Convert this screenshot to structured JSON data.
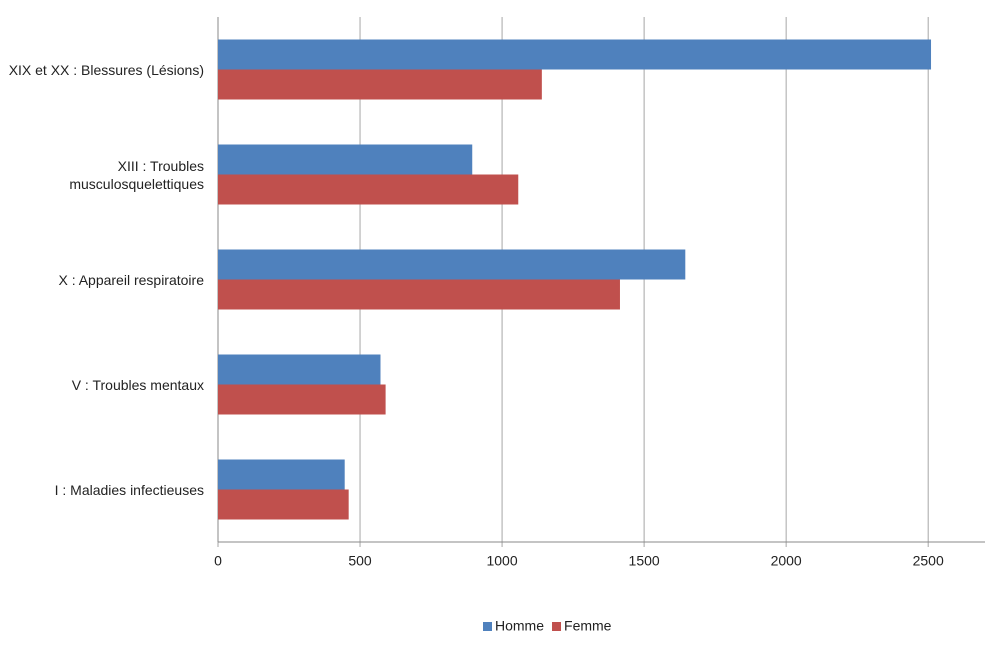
{
  "chart_data": {
    "type": "hbar",
    "categories": [
      "XIX et XX : Blessures (Lésions)",
      "XIII : Troubles musculosquelettiques",
      "X : Appareil respiratoire",
      "V : Troubles mentaux",
      "I : Maladies infectieuses"
    ],
    "series": [
      {
        "name": "Homme",
        "color": "#4f81bd",
        "values": [
          2510,
          895,
          1645,
          572,
          446
        ]
      },
      {
        "name": "Femme",
        "color": "#c0504d",
        "values": [
          1140,
          1057,
          1415,
          590,
          460
        ]
      }
    ],
    "xlim": [
      0,
      2700
    ],
    "xticks": [
      0,
      500,
      1000,
      1500,
      2000,
      2500
    ],
    "grid": true,
    "legend": "bottom"
  }
}
